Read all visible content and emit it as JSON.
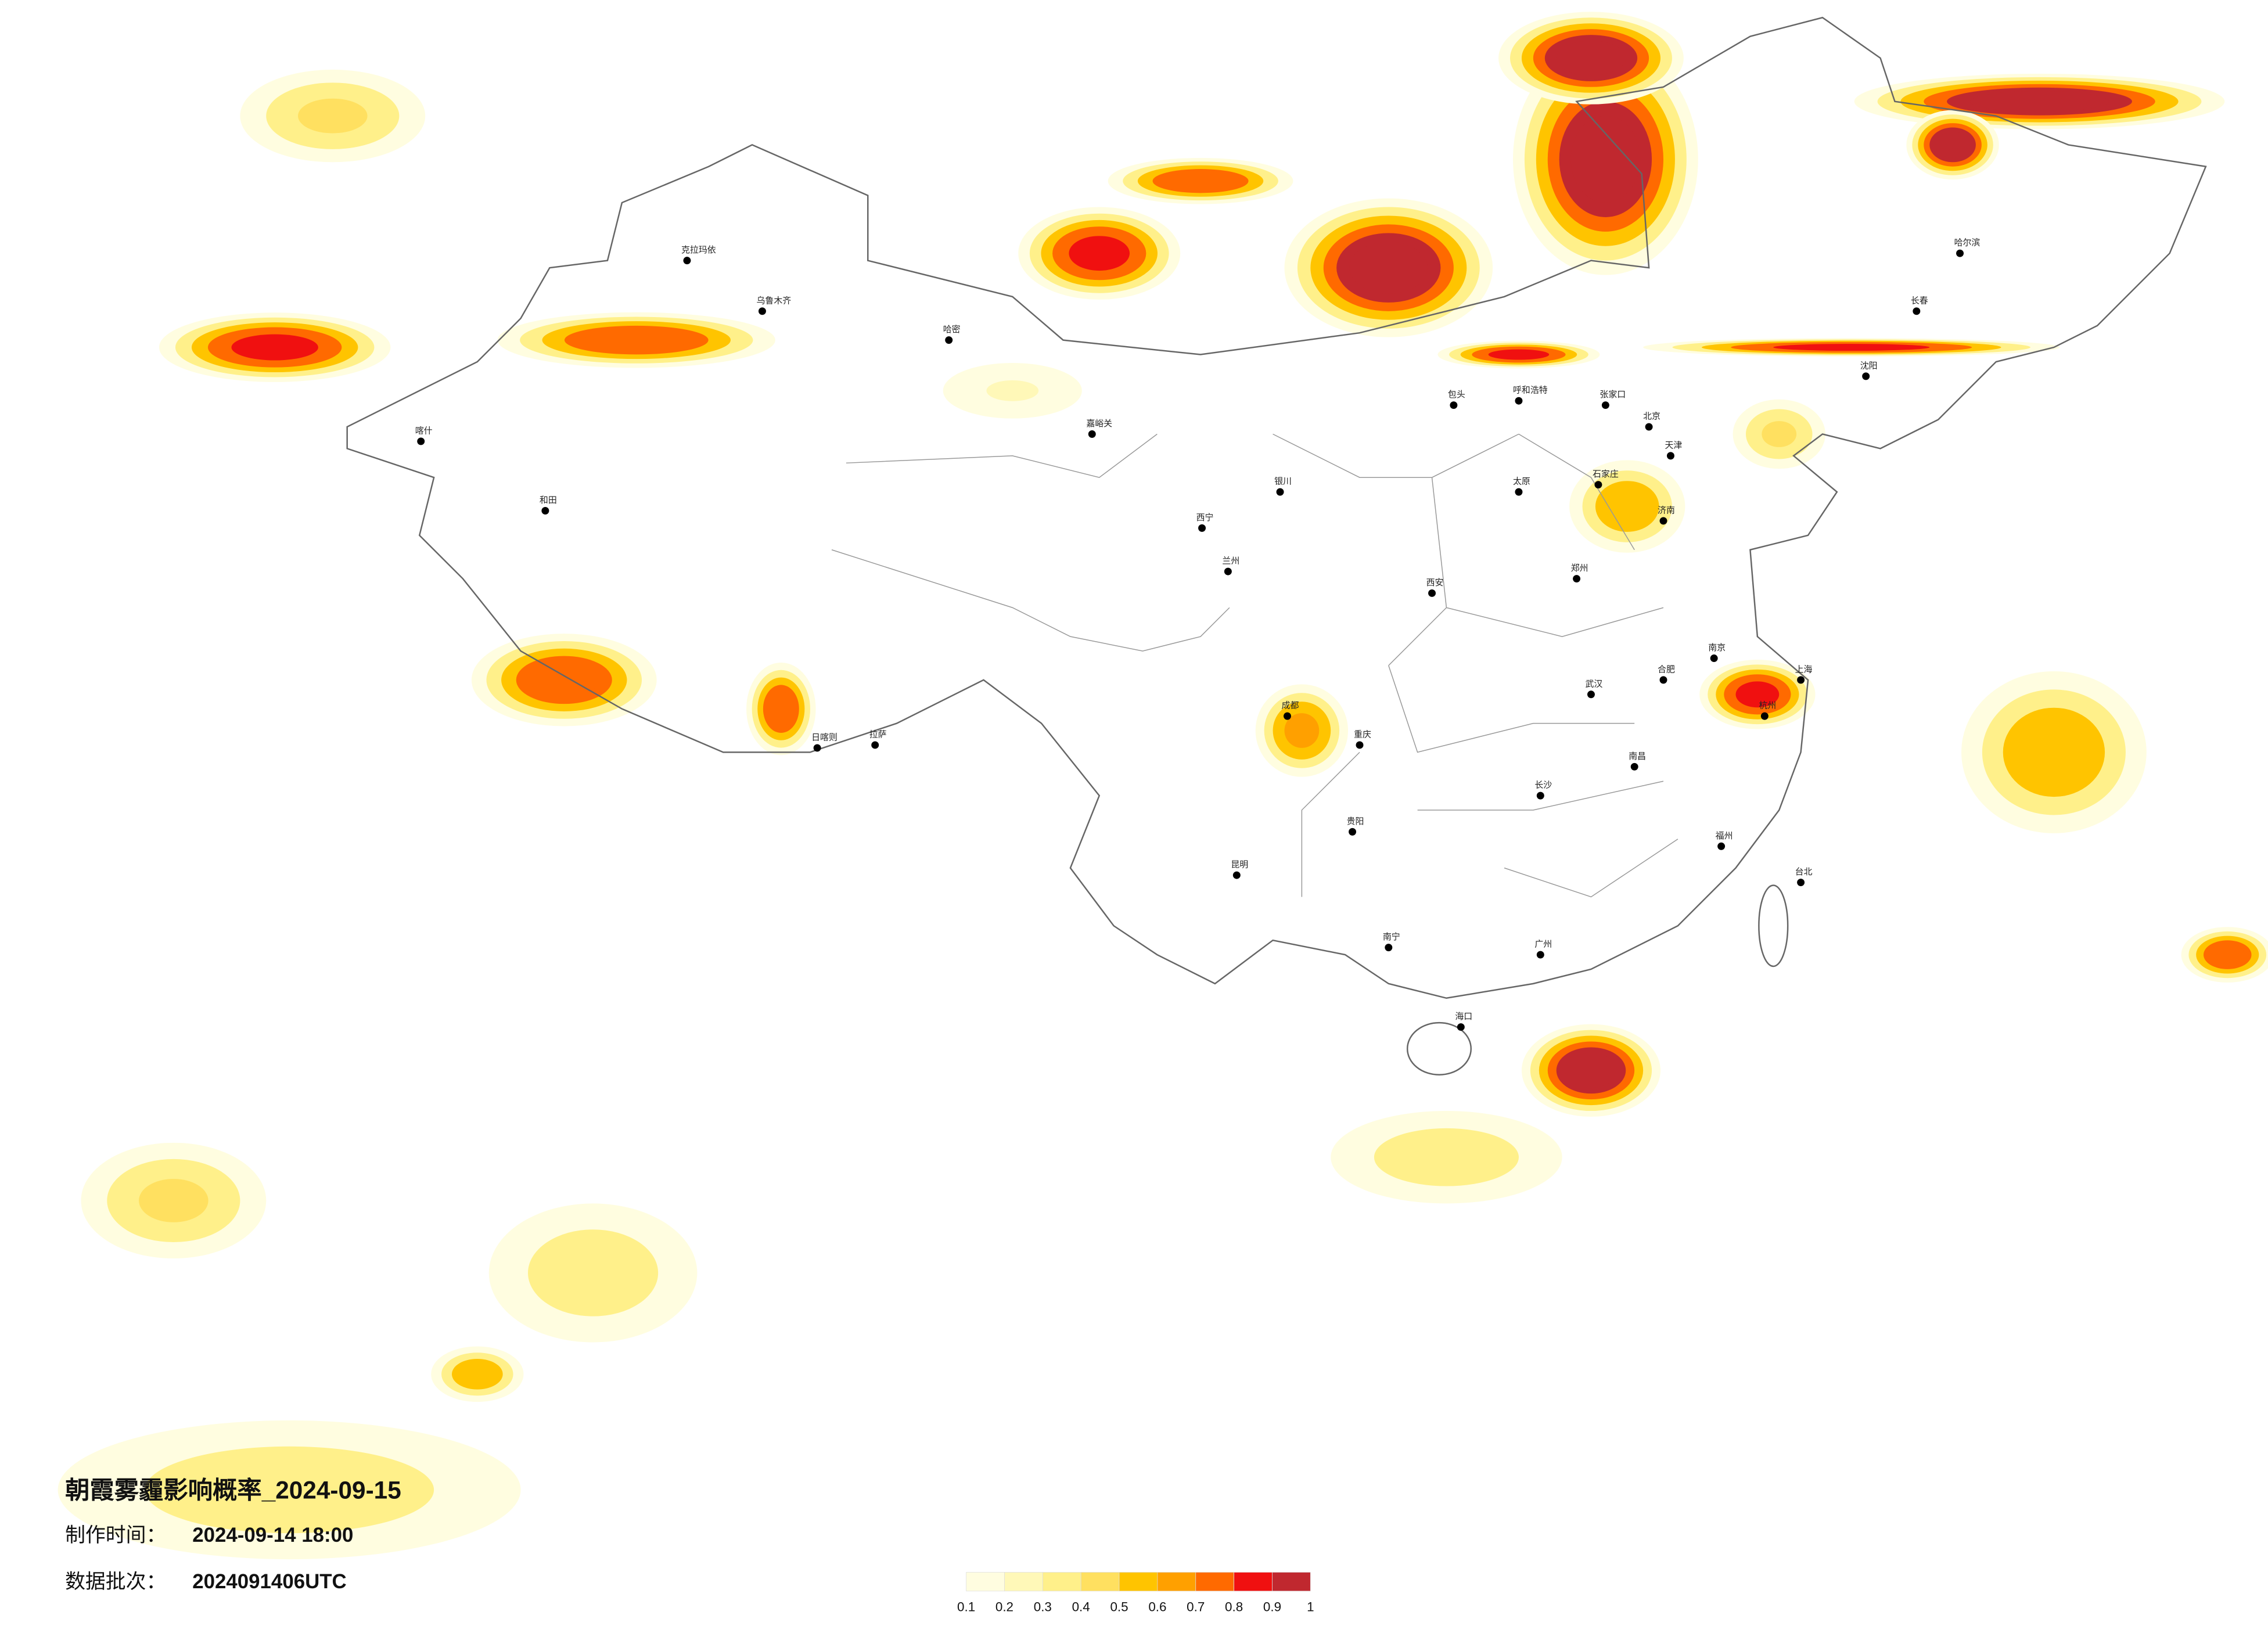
{
  "title": "朝霞雾霾影响概率_2024-09-15",
  "made_time_label": "制作时间：",
  "made_time": "2024-09-14 18:00",
  "batch_label": "数据批次：",
  "batch": "2024091406UTC",
  "colorbar": {
    "ticks": [
      0.1,
      0.2,
      0.3,
      0.4,
      0.5,
      0.6,
      0.7,
      0.8,
      0.9,
      1
    ],
    "colors": [
      "#fffde0",
      "#fff8b8",
      "#fff08a",
      "#ffe060",
      "#ffc400",
      "#ffa000",
      "#ff6a00",
      "#f01010",
      "#c0282f"
    ]
  },
  "cities": [
    "克拉玛依",
    "乌鲁木齐",
    "哈密",
    "喀什",
    "和田",
    "拉萨",
    "日喀则",
    "西宁",
    "兰州",
    "银川",
    "呼和浩特",
    "包头",
    "北京",
    "天津",
    "石家庄",
    "太原",
    "郑州",
    "西安",
    "成都",
    "重庆",
    "贵阳",
    "昆明",
    "南宁",
    "广州",
    "海口",
    "长沙",
    "武汉",
    "南昌",
    "福州",
    "杭州",
    "上海",
    "南京",
    "合肥",
    "济南",
    "沈阳",
    "长春",
    "哈尔滨",
    "台北",
    "嘉峪关",
    "张家口"
  ]
}
